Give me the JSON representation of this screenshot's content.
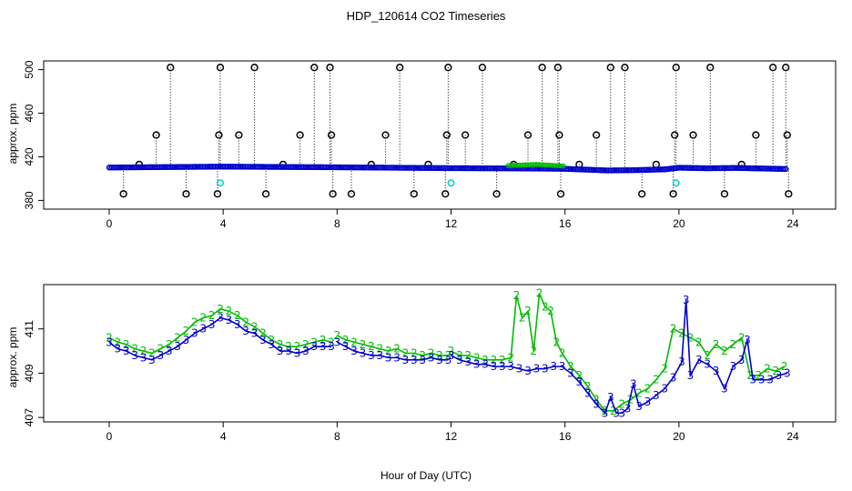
{
  "chart_data": [
    {
      "type": "scatter",
      "title": "HDP_120614  CO2 Timeseries",
      "xlabel": "",
      "ylabel": "approx. ppm",
      "xlim": [
        -2.3,
        25.5
      ],
      "ylim": [
        372,
        508
      ],
      "xticks": [
        "0",
        "4",
        "8",
        "12",
        "16",
        "20",
        "24"
      ],
      "yticks": [
        "380",
        "420",
        "460",
        "500"
      ],
      "colors": {
        "baseline": "#0000cc",
        "overlay": "#00bb00",
        "flag": "#000000",
        "cal": "#00cccc"
      },
      "flag_points": {
        "x": [
          0.5,
          1.05,
          1.65,
          2.15,
          2.7,
          3.8,
          3.85,
          3.9,
          4.55,
          5.1,
          5.5,
          6.1,
          6.7,
          7.2,
          7.75,
          7.8,
          7.85,
          8.5,
          9.2,
          9.7,
          10.2,
          10.7,
          11.2,
          11.8,
          11.85,
          11.9,
          12.5,
          13.1,
          13.6,
          14.2,
          14.7,
          15.2,
          15.75,
          15.8,
          15.85,
          16.5,
          17.1,
          17.6,
          18.1,
          18.7,
          19.2,
          19.8,
          19.85,
          19.9,
          20.5,
          21.1,
          21.6,
          22.2,
          22.7,
          23.3,
          23.75,
          23.8,
          23.85
        ],
        "y": [
          386,
          413,
          440,
          502,
          386,
          386,
          440,
          502,
          440,
          502,
          386,
          413,
          440,
          502,
          502,
          440,
          386,
          386,
          413,
          440,
          502,
          386,
          413,
          386,
          440,
          502,
          440,
          502,
          386,
          413,
          440,
          502,
          502,
          440,
          386,
          413,
          440,
          502,
          502,
          386,
          413,
          386,
          440,
          502,
          440,
          502,
          386,
          413,
          440,
          502,
          502,
          440,
          386
        ]
      },
      "cal_points": {
        "x": [
          3.9,
          12.0,
          19.9
        ],
        "y": [
          396,
          396,
          396
        ]
      },
      "baseline_segments": [
        {
          "x": [
            0,
            4,
            8,
            12,
            14,
            16,
            17.5,
            18.5,
            19.5,
            20,
            21,
            22,
            23.8
          ],
          "y": [
            410.2,
            411,
            410.4,
            409.6,
            409.4,
            409,
            407.5,
            407.8,
            408.5,
            410,
            409.5,
            409.8,
            408.8
          ]
        }
      ],
      "overlay_segment": {
        "x": [
          14,
          14.5,
          15,
          15.5,
          16
        ],
        "y": [
          412,
          412.5,
          413,
          412.2,
          411.5
        ]
      }
    },
    {
      "type": "line",
      "title": "",
      "xlabel": "Hour of Day (UTC)",
      "ylabel": "approx. ppm",
      "xlim": [
        -2.3,
        25.5
      ],
      "ylim": [
        406.8,
        413.0
      ],
      "xticks": [
        "0",
        "4",
        "8",
        "12",
        "16",
        "20",
        "24"
      ],
      "yticks": [
        "407",
        "409",
        "411"
      ],
      "series": [
        {
          "name": "2",
          "color": "#00bb00",
          "segments": [
            {
              "x": [
                0.0,
                0.3,
                0.6,
                0.9,
                1.2,
                1.5,
                1.8,
                2.1,
                2.4,
                2.7,
                3.0,
                3.3,
                3.6,
                3.9,
                4.2,
                4.5,
                4.8,
                5.1,
                5.4,
                5.7,
                6.0,
                6.3,
                6.6,
                6.9,
                7.2,
                7.5,
                7.8
              ],
              "y": [
                410.6,
                410.4,
                410.3,
                410.1,
                410.0,
                409.9,
                410.1,
                410.3,
                410.6,
                410.9,
                411.3,
                411.5,
                411.6,
                411.9,
                411.8,
                411.6,
                411.3,
                411.1,
                410.8,
                410.5,
                410.3,
                410.2,
                410.2,
                410.3,
                410.4,
                410.5,
                410.4
              ]
            },
            {
              "x": [
                8.0,
                8.3,
                8.6,
                8.9,
                9.2,
                9.5,
                9.8,
                10.1,
                10.4,
                10.7,
                11.0,
                11.3,
                11.6,
                11.9
              ],
              "y": [
                410.7,
                410.5,
                410.4,
                410.3,
                410.2,
                410.1,
                410.0,
                410.1,
                409.9,
                409.9,
                409.8,
                409.9,
                409.8,
                409.8
              ]
            },
            {
              "x": [
                12.0,
                12.3,
                12.6,
                12.9,
                13.2,
                13.5,
                13.8,
                14.1,
                14.3,
                14.5,
                14.7,
                14.9,
                15.1,
                15.3,
                15.5,
                15.7,
                15.9,
                16.2,
                16.5,
                16.8,
                17.1,
                17.4,
                17.7,
                18.0,
                18.3,
                18.6,
                18.9,
                19.2,
                19.5,
                19.8,
                20.1,
                20.4,
                20.7,
                21.0,
                21.3,
                21.6,
                21.9,
                22.2,
                22.5,
                22.8,
                23.1,
                23.4,
                23.7
              ],
              "y": [
                410.0,
                409.8,
                409.8,
                409.7,
                409.6,
                409.6,
                409.6,
                409.7,
                412.5,
                411.5,
                411.8,
                410.0,
                412.6,
                412.0,
                411.8,
                410.4,
                409.9,
                409.3,
                408.9,
                408.4,
                407.8,
                407.3,
                407.3,
                407.6,
                407.8,
                408.1,
                408.3,
                408.7,
                409.2,
                411.0,
                410.8,
                410.6,
                410.4,
                409.8,
                410.3,
                410.0,
                410.3,
                410.6,
                408.9,
                408.9,
                409.2,
                409.1,
                409.3
              ]
            }
          ]
        },
        {
          "name": "3",
          "color": "#0000cc",
          "segments": [
            {
              "x": [
                0.0,
                0.3,
                0.6,
                0.9,
                1.2,
                1.5,
                1.8,
                2.1,
                2.4,
                2.7,
                3.0,
                3.3,
                3.6,
                3.9,
                4.2,
                4.5,
                4.8,
                5.1,
                5.4,
                5.7,
                6.0,
                6.3,
                6.6,
                6.9,
                7.2,
                7.5,
                7.8
              ],
              "y": [
                410.4,
                410.1,
                410.0,
                409.8,
                409.7,
                409.6,
                409.8,
                410.0,
                410.2,
                410.5,
                410.8,
                411.0,
                411.2,
                411.5,
                411.4,
                411.2,
                410.9,
                410.8,
                410.5,
                410.3,
                410.0,
                410.0,
                409.9,
                410.0,
                410.2,
                410.2,
                410.2
              ]
            },
            {
              "x": [
                8.0,
                8.3,
                8.6,
                8.9,
                9.2,
                9.5,
                9.8,
                10.1,
                10.4,
                10.7,
                11.0,
                11.3,
                11.6,
                11.9
              ],
              "y": [
                410.4,
                410.2,
                410.0,
                409.9,
                409.8,
                409.8,
                409.7,
                409.7,
                409.6,
                409.6,
                409.6,
                409.7,
                409.6,
                409.6
              ]
            },
            {
              "x": [
                12.0,
                12.3,
                12.6,
                12.9,
                13.2,
                13.5,
                13.8,
                14.1,
                14.4,
                14.7,
                15.0,
                15.3,
                15.6,
                15.9,
                16.2,
                16.5,
                16.8,
                17.1,
                17.4,
                17.6,
                17.8,
                18.0,
                18.2,
                18.4,
                18.6,
                18.9,
                19.2,
                19.5,
                19.8,
                20.1,
                20.25,
                20.4,
                20.7,
                21.0,
                21.3,
                21.6,
                21.9,
                22.2,
                22.4,
                22.6,
                22.9,
                23.2,
                23.5,
                23.8
              ],
              "y": [
                409.8,
                409.6,
                409.5,
                409.4,
                409.4,
                409.3,
                409.3,
                409.3,
                409.2,
                409.1,
                409.2,
                409.2,
                409.3,
                409.3,
                409.0,
                408.6,
                408.1,
                407.6,
                407.2,
                407.9,
                407.2,
                407.2,
                407.4,
                408.5,
                407.5,
                407.7,
                408.0,
                408.3,
                408.8,
                409.5,
                412.3,
                408.9,
                409.6,
                409.4,
                409.1,
                408.3,
                409.3,
                409.6,
                410.5,
                408.7,
                408.7,
                408.7,
                408.9,
                409.0
              ]
            }
          ]
        }
      ]
    }
  ]
}
